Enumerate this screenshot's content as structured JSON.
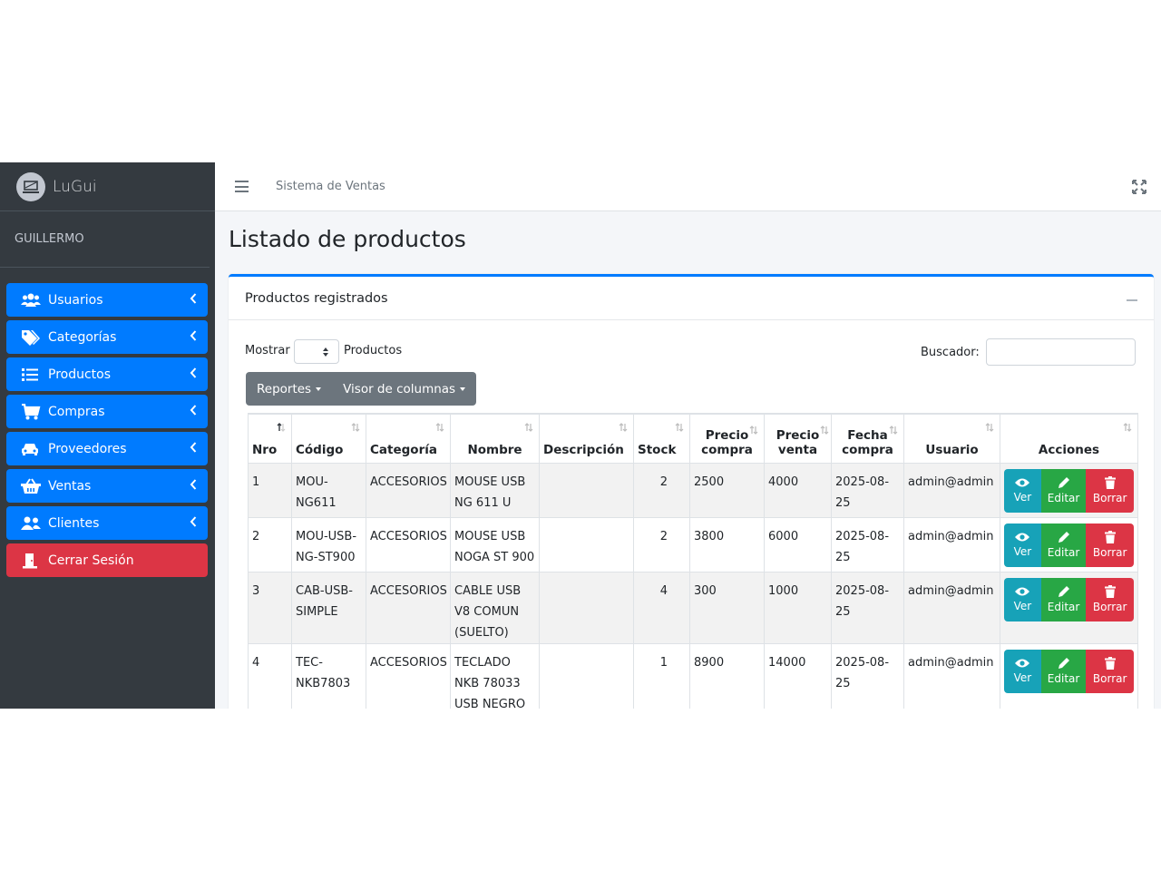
{
  "sidebar": {
    "brand": "LuGui",
    "user": "GUILLERMO",
    "items": [
      {
        "label": "Usuarios",
        "icon": "users-icon"
      },
      {
        "label": "Categorías",
        "icon": "tags-icon"
      },
      {
        "label": "Productos",
        "icon": "list-icon"
      },
      {
        "label": "Compras",
        "icon": "cart-icon"
      },
      {
        "label": "Proveedores",
        "icon": "car-icon"
      },
      {
        "label": "Ventas",
        "icon": "basket-icon"
      },
      {
        "label": "Clientes",
        "icon": "user-friends-icon"
      }
    ],
    "logout": {
      "label": "Cerrar Sesión",
      "icon": "door-exit-icon"
    }
  },
  "topbar": {
    "title": "Sistema de Ventas"
  },
  "page": {
    "title": "Listado de productos"
  },
  "card": {
    "title": "Productos registrados",
    "length_label": "Mostrar",
    "length_suffix": "Productos",
    "search_label": "Buscador:",
    "buttons": {
      "reports": "Reportes",
      "columns": "Visor de columnas"
    }
  },
  "table": {
    "headers": {
      "nro": "Nro",
      "codigo": "Código",
      "categoria": "Categoría",
      "nombre": "Nombre",
      "descripcion": "Descripción",
      "stock": "Stock",
      "precio_compra_1": "Precio",
      "precio_compra_2": "compra",
      "precio_venta_1": "Precio",
      "precio_venta_2": "venta",
      "fecha_1": "Fecha",
      "fecha_2": "compra",
      "usuario": "Usuario",
      "acciones": "Acciones"
    },
    "actions": {
      "view": "Ver",
      "edit": "Editar",
      "delete": "Borrar"
    },
    "rows": [
      {
        "nro": "1",
        "codigo": "MOU-NG611",
        "categoria": "ACCESORIOS",
        "nombre": "MOUSE USB NG 611 U",
        "descripcion": "",
        "stock": "2",
        "precio_compra": "2500",
        "precio_venta": "4000",
        "fecha": "2025-08-25",
        "usuario": "admin@admin"
      },
      {
        "nro": "2",
        "codigo": "MOU-USB-NG-ST900",
        "categoria": "ACCESORIOS",
        "nombre": "MOUSE USB NOGA ST 900",
        "descripcion": "",
        "stock": "2",
        "precio_compra": "3800",
        "precio_venta": "6000",
        "fecha": "2025-08-25",
        "usuario": "admin@admin"
      },
      {
        "nro": "3",
        "codigo": "CAB-USB-SIMPLE",
        "categoria": "ACCESORIOS",
        "nombre": "CABLE USB V8 COMUN (SUELTO)",
        "descripcion": "",
        "stock": "4",
        "precio_compra": "300",
        "precio_venta": "1000",
        "fecha": "2025-08-25",
        "usuario": "admin@admin"
      },
      {
        "nro": "4",
        "codigo": "TEC-NKB7803",
        "categoria": "ACCESORIOS",
        "nombre": "TECLADO NKB 78033 USB NEGRO",
        "descripcion": "",
        "stock": "1",
        "precio_compra": "8900",
        "precio_venta": "14000",
        "fecha": "2025-08-25",
        "usuario": "admin@admin"
      }
    ]
  },
  "colors": {
    "primary": "#007bff",
    "danger": "#dc3545",
    "info": "#17a2b8",
    "success": "#28a745",
    "sidebar": "#343a40"
  }
}
